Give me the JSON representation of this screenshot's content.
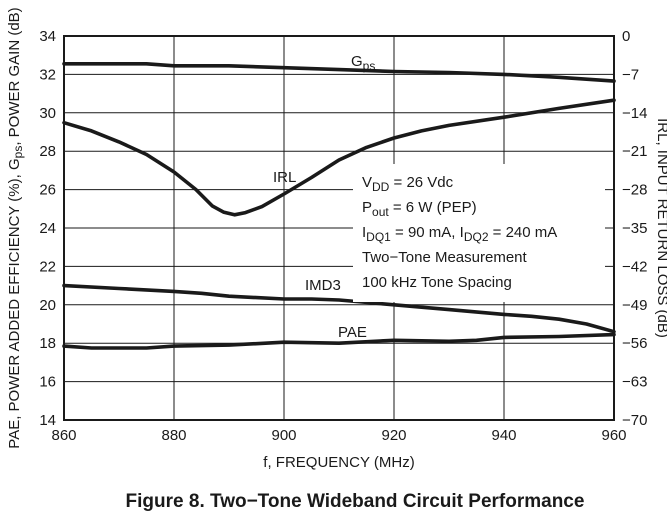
{
  "chart_data": {
    "type": "line",
    "caption": "Figure 8. Two−Tone Wideband Circuit Performance",
    "xlabel": "f, FREQUENCY (MHz)",
    "ylabel_left_parts": [
      "PAE, POWER ADDED EFFICIENCY (%), G",
      "ps",
      ", POWER GAIN (dB)"
    ],
    "ylabel_right": "IRL, INPUT RETURN LOSS (dB)",
    "xlim": [
      860,
      960
    ],
    "ylim_left": [
      14,
      34
    ],
    "ylim_right": [
      -70,
      0
    ],
    "x_ticks": [
      860,
      880,
      900,
      920,
      940,
      960
    ],
    "y_ticks_left": [
      14,
      16,
      18,
      20,
      22,
      24,
      26,
      28,
      30,
      32,
      34
    ],
    "y_ticks_right": [
      "0",
      "−7",
      "−14",
      "−21",
      "−28",
      "−35",
      "−42",
      "−49",
      "−56",
      "−63",
      "−70"
    ],
    "grid": true,
    "series": [
      {
        "name": "Gps",
        "label_main": "G",
        "label_sub": "ps",
        "axis": "left",
        "x": [
          860,
          870,
          875,
          880,
          890,
          900,
          910,
          920,
          930,
          940,
          950,
          960
        ],
        "y": [
          32.55,
          32.55,
          32.55,
          32.45,
          32.45,
          32.35,
          32.25,
          32.15,
          32.1,
          32.0,
          31.85,
          31.65
        ]
      },
      {
        "name": "IRL",
        "label_main": "IRL",
        "label_sub": "",
        "axis": "right",
        "x": [
          860,
          865,
          870,
          875,
          880,
          884,
          887,
          889,
          891,
          893,
          896,
          900,
          905,
          910,
          915,
          920,
          925,
          930,
          940,
          950,
          960
        ],
        "y": [
          -15.8,
          -17.3,
          -19.3,
          -21.6,
          -24.8,
          -28.0,
          -31.0,
          -32.1,
          -32.6,
          -32.2,
          -31.1,
          -28.8,
          -25.8,
          -22.6,
          -20.3,
          -18.6,
          -17.3,
          -16.3,
          -14.8,
          -13.2,
          -11.7
        ]
      },
      {
        "name": "IMD3",
        "label_main": "IMD3",
        "label_sub": "",
        "axis": "left",
        "x": [
          860,
          870,
          880,
          885,
          890,
          900,
          905,
          910,
          920,
          930,
          940,
          945,
          950,
          955,
          960
        ],
        "y": [
          21.0,
          20.85,
          20.7,
          20.6,
          20.45,
          20.3,
          20.3,
          20.25,
          20.0,
          19.75,
          19.5,
          19.4,
          19.25,
          19.0,
          18.6
        ]
      },
      {
        "name": "PAE",
        "label_main": "PAE",
        "label_sub": "",
        "axis": "left",
        "x": [
          860,
          865,
          875,
          880,
          890,
          900,
          910,
          920,
          930,
          935,
          940,
          950,
          960
        ],
        "y": [
          17.85,
          17.75,
          17.75,
          17.85,
          17.9,
          18.05,
          18.0,
          18.15,
          18.1,
          18.15,
          18.3,
          18.35,
          18.45
        ]
      }
    ],
    "conditions": [
      {
        "parts": [
          [
            "V",
            ""
          ],
          [
            "DD",
            "sub"
          ],
          [
            " = 26 Vdc",
            ""
          ]
        ]
      },
      {
        "parts": [
          [
            "P",
            ""
          ],
          [
            "out",
            "sub"
          ],
          [
            " = 6 W (PEP)",
            ""
          ]
        ]
      },
      {
        "parts": [
          [
            "I",
            ""
          ],
          [
            "DQ1",
            "sub"
          ],
          [
            " = 90 mA, I",
            ""
          ],
          [
            "DQ2",
            "sub"
          ],
          [
            " = 240 mA",
            ""
          ]
        ]
      },
      {
        "parts": [
          [
            "Two−Tone Measurement",
            ""
          ]
        ]
      },
      {
        "parts": [
          [
            "100 kHz Tone Spacing",
            ""
          ]
        ]
      }
    ]
  }
}
